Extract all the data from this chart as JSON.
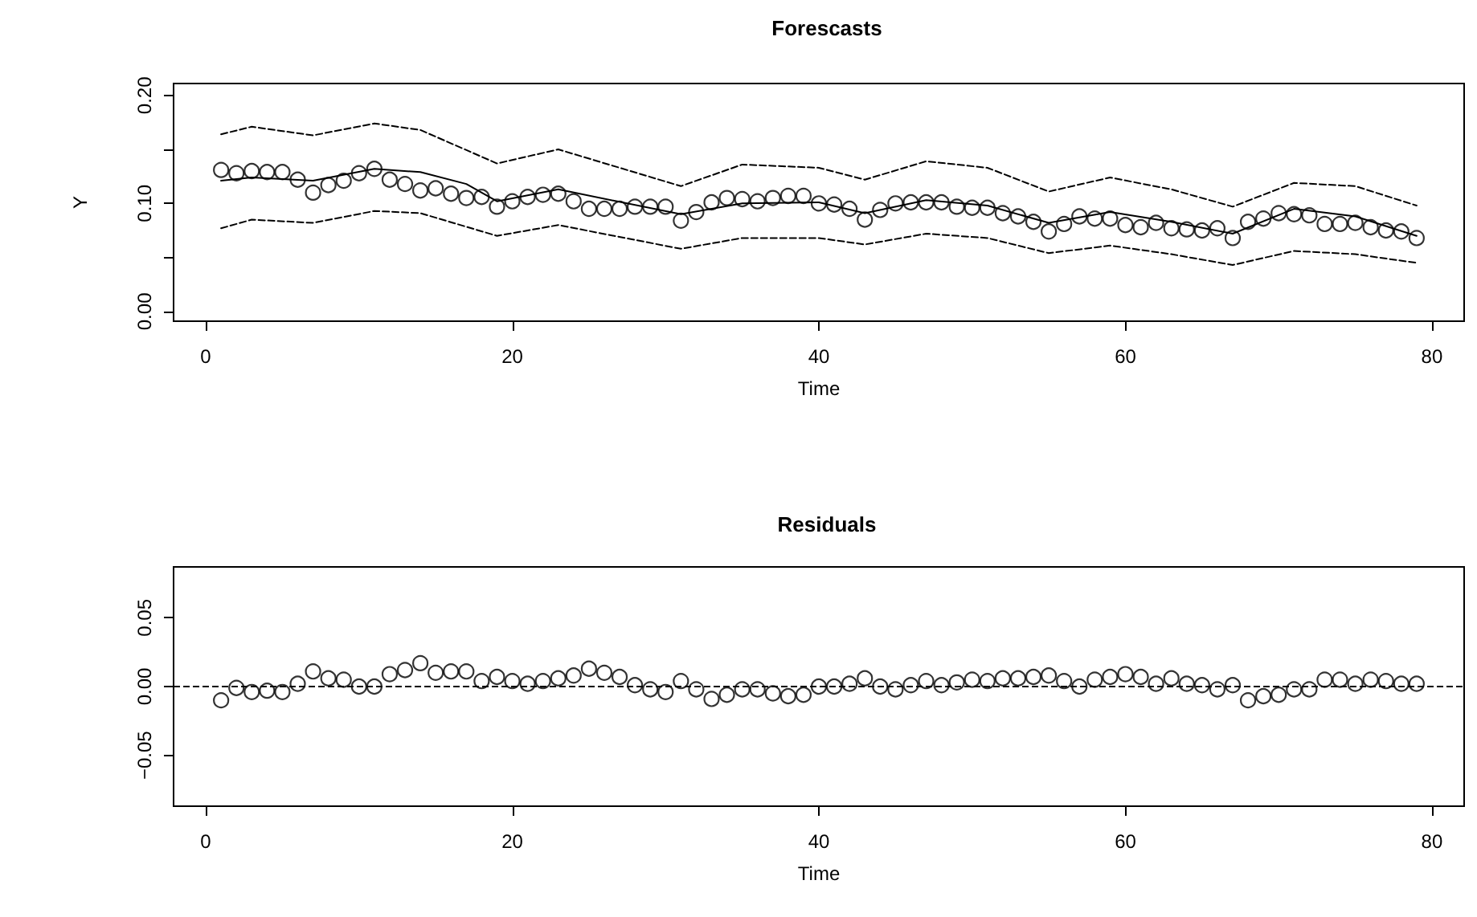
{
  "chart_data": [
    {
      "type": "line",
      "title": "Forescasts",
      "xlabel": "Time",
      "ylabel": "Y",
      "xlim": [
        -2.1,
        82.1
      ],
      "xticks": [
        0,
        20,
        40,
        60,
        80
      ],
      "ylim": [
        -0.009,
        0.211
      ],
      "yticks": [
        {
          "value": 0,
          "label": "0.00"
        },
        {
          "value": 0.05,
          "label": null
        },
        {
          "value": 0.1,
          "label": "0.10"
        },
        {
          "value": 0.15,
          "label": null
        },
        {
          "value": 0.2,
          "label": "0.20"
        }
      ],
      "grid": false,
      "series": [
        {
          "type": "scatter",
          "marker": "circle",
          "color": "#000000",
          "x": [
            1,
            2,
            3,
            4,
            5,
            6,
            7,
            8,
            9,
            10,
            11,
            12,
            13,
            14,
            15,
            16,
            17,
            18,
            19,
            20,
            21,
            22,
            23,
            24,
            25,
            26,
            27,
            28,
            29,
            30,
            31,
            32,
            33,
            34,
            35,
            36,
            37,
            38,
            39,
            40,
            41,
            42,
            43,
            44,
            45,
            46,
            47,
            48,
            49,
            50,
            51,
            52,
            53,
            54,
            55,
            56,
            57,
            58,
            59,
            60,
            61,
            62,
            63,
            64,
            65,
            66,
            67,
            68,
            69,
            70,
            71,
            72,
            73,
            74,
            75,
            76,
            77,
            78,
            79
          ],
          "values": [
            0.131,
            0.128,
            0.13,
            0.129,
            0.129,
            0.122,
            0.11,
            0.117,
            0.121,
            0.128,
            0.132,
            0.122,
            0.118,
            0.112,
            0.114,
            0.109,
            0.105,
            0.106,
            0.097,
            0.102,
            0.106,
            0.108,
            0.109,
            0.102,
            0.095,
            0.095,
            0.095,
            0.097,
            0.097,
            0.097,
            0.084,
            0.092,
            0.101,
            0.105,
            0.104,
            0.102,
            0.105,
            0.107,
            0.107,
            0.1,
            0.099,
            0.095,
            0.085,
            0.094,
            0.1,
            0.101,
            0.101,
            0.101,
            0.097,
            0.096,
            0.096,
            0.091,
            0.088,
            0.083,
            0.074,
            0.081,
            0.088,
            0.086,
            0.086,
            0.08,
            0.078,
            0.082,
            0.077,
            0.076,
            0.075,
            0.077,
            0.068,
            0.083,
            0.086,
            0.091,
            0.09,
            0.089,
            0.081,
            0.081,
            0.082,
            0.078,
            0.075,
            0.074,
            0.068
          ]
        },
        {
          "line_style": "solid",
          "color": "#000000",
          "x": [
            1,
            3,
            7,
            11,
            14,
            17,
            19,
            23,
            31,
            35,
            40,
            43,
            47,
            51,
            55,
            59,
            63,
            67,
            71,
            75,
            79
          ],
          "values": [
            0.121,
            0.124,
            0.121,
            0.132,
            0.129,
            0.118,
            0.102,
            0.113,
            0.09,
            0.1,
            0.101,
            0.091,
            0.103,
            0.098,
            0.082,
            0.092,
            0.083,
            0.072,
            0.095,
            0.088,
            0.07
          ]
        },
        {
          "line_style": "dashed",
          "color": "#000000",
          "x": [
            1,
            3,
            7,
            11,
            14,
            19,
            23,
            31,
            35,
            40,
            43,
            47,
            51,
            55,
            59,
            63,
            67,
            71,
            75,
            79
          ],
          "values": [
            0.164,
            0.171,
            0.163,
            0.174,
            0.168,
            0.137,
            0.15,
            0.116,
            0.136,
            0.133,
            0.122,
            0.139,
            0.133,
            0.111,
            0.124,
            0.113,
            0.097,
            0.119,
            0.116,
            0.098
          ]
        },
        {
          "line_style": "dashed",
          "color": "#000000",
          "x": [
            1,
            3,
            7,
            11,
            14,
            19,
            23,
            31,
            35,
            40,
            43,
            47,
            51,
            55,
            59,
            63,
            67,
            71,
            75,
            79
          ],
          "values": [
            0.077,
            0.085,
            0.082,
            0.093,
            0.091,
            0.07,
            0.08,
            0.058,
            0.068,
            0.068,
            0.062,
            0.072,
            0.068,
            0.054,
            0.061,
            0.053,
            0.043,
            0.056,
            0.053,
            0.045
          ]
        }
      ]
    },
    {
      "type": "scatter",
      "title": "Residuals",
      "xlabel": "Time",
      "marker": "circle",
      "xlim": [
        -2.1,
        82.1
      ],
      "xticks": [
        0,
        20,
        40,
        60,
        80
      ],
      "ylim": [
        -0.087,
        0.087
      ],
      "yticks": [
        {
          "value": -0.05,
          "label": "−0.05"
        },
        {
          "value": 0,
          "label": "0.00"
        },
        {
          "value": 0.05,
          "label": "0.05"
        }
      ],
      "grid": false,
      "ref_lines": [
        {
          "axis": "y",
          "value": 0,
          "line_style": "dashed",
          "color": "#000000"
        }
      ],
      "series": [
        {
          "color": "#000000",
          "x": [
            1,
            2,
            3,
            4,
            5,
            6,
            7,
            8,
            9,
            10,
            11,
            12,
            13,
            14,
            15,
            16,
            17,
            18,
            19,
            20,
            21,
            22,
            23,
            24,
            25,
            26,
            27,
            28,
            29,
            30,
            31,
            32,
            33,
            34,
            35,
            36,
            37,
            38,
            39,
            40,
            41,
            42,
            43,
            44,
            45,
            46,
            47,
            48,
            49,
            50,
            51,
            52,
            53,
            54,
            55,
            56,
            57,
            58,
            59,
            60,
            61,
            62,
            63,
            64,
            65,
            66,
            67,
            68,
            69,
            70,
            71,
            72,
            73,
            74,
            75,
            76,
            77,
            78,
            79
          ],
          "values": [
            -0.01,
            -0.001,
            -0.004,
            -0.003,
            -0.004,
            0.002,
            0.011,
            0.006,
            0.005,
            0.0,
            0.0,
            0.009,
            0.012,
            0.017,
            0.01,
            0.011,
            0.011,
            0.004,
            0.007,
            0.004,
            0.002,
            0.004,
            0.006,
            0.008,
            0.013,
            0.01,
            0.007,
            0.001,
            -0.002,
            -0.004,
            0.004,
            -0.002,
            -0.009,
            -0.006,
            -0.002,
            -0.002,
            -0.005,
            -0.007,
            -0.006,
            0.0,
            0.0,
            0.002,
            0.006,
            0.0,
            -0.002,
            0.001,
            0.004,
            0.001,
            0.003,
            0.005,
            0.004,
            0.006,
            0.006,
            0.007,
            0.008,
            0.004,
            0.0,
            0.005,
            0.007,
            0.009,
            0.007,
            0.002,
            0.006,
            0.002,
            0.001,
            -0.002,
            0.001,
            -0.01,
            -0.007,
            -0.006,
            -0.002,
            -0.002,
            0.005,
            0.005,
            0.002,
            0.005,
            0.004,
            0.002,
            0.002
          ]
        }
      ]
    }
  ]
}
